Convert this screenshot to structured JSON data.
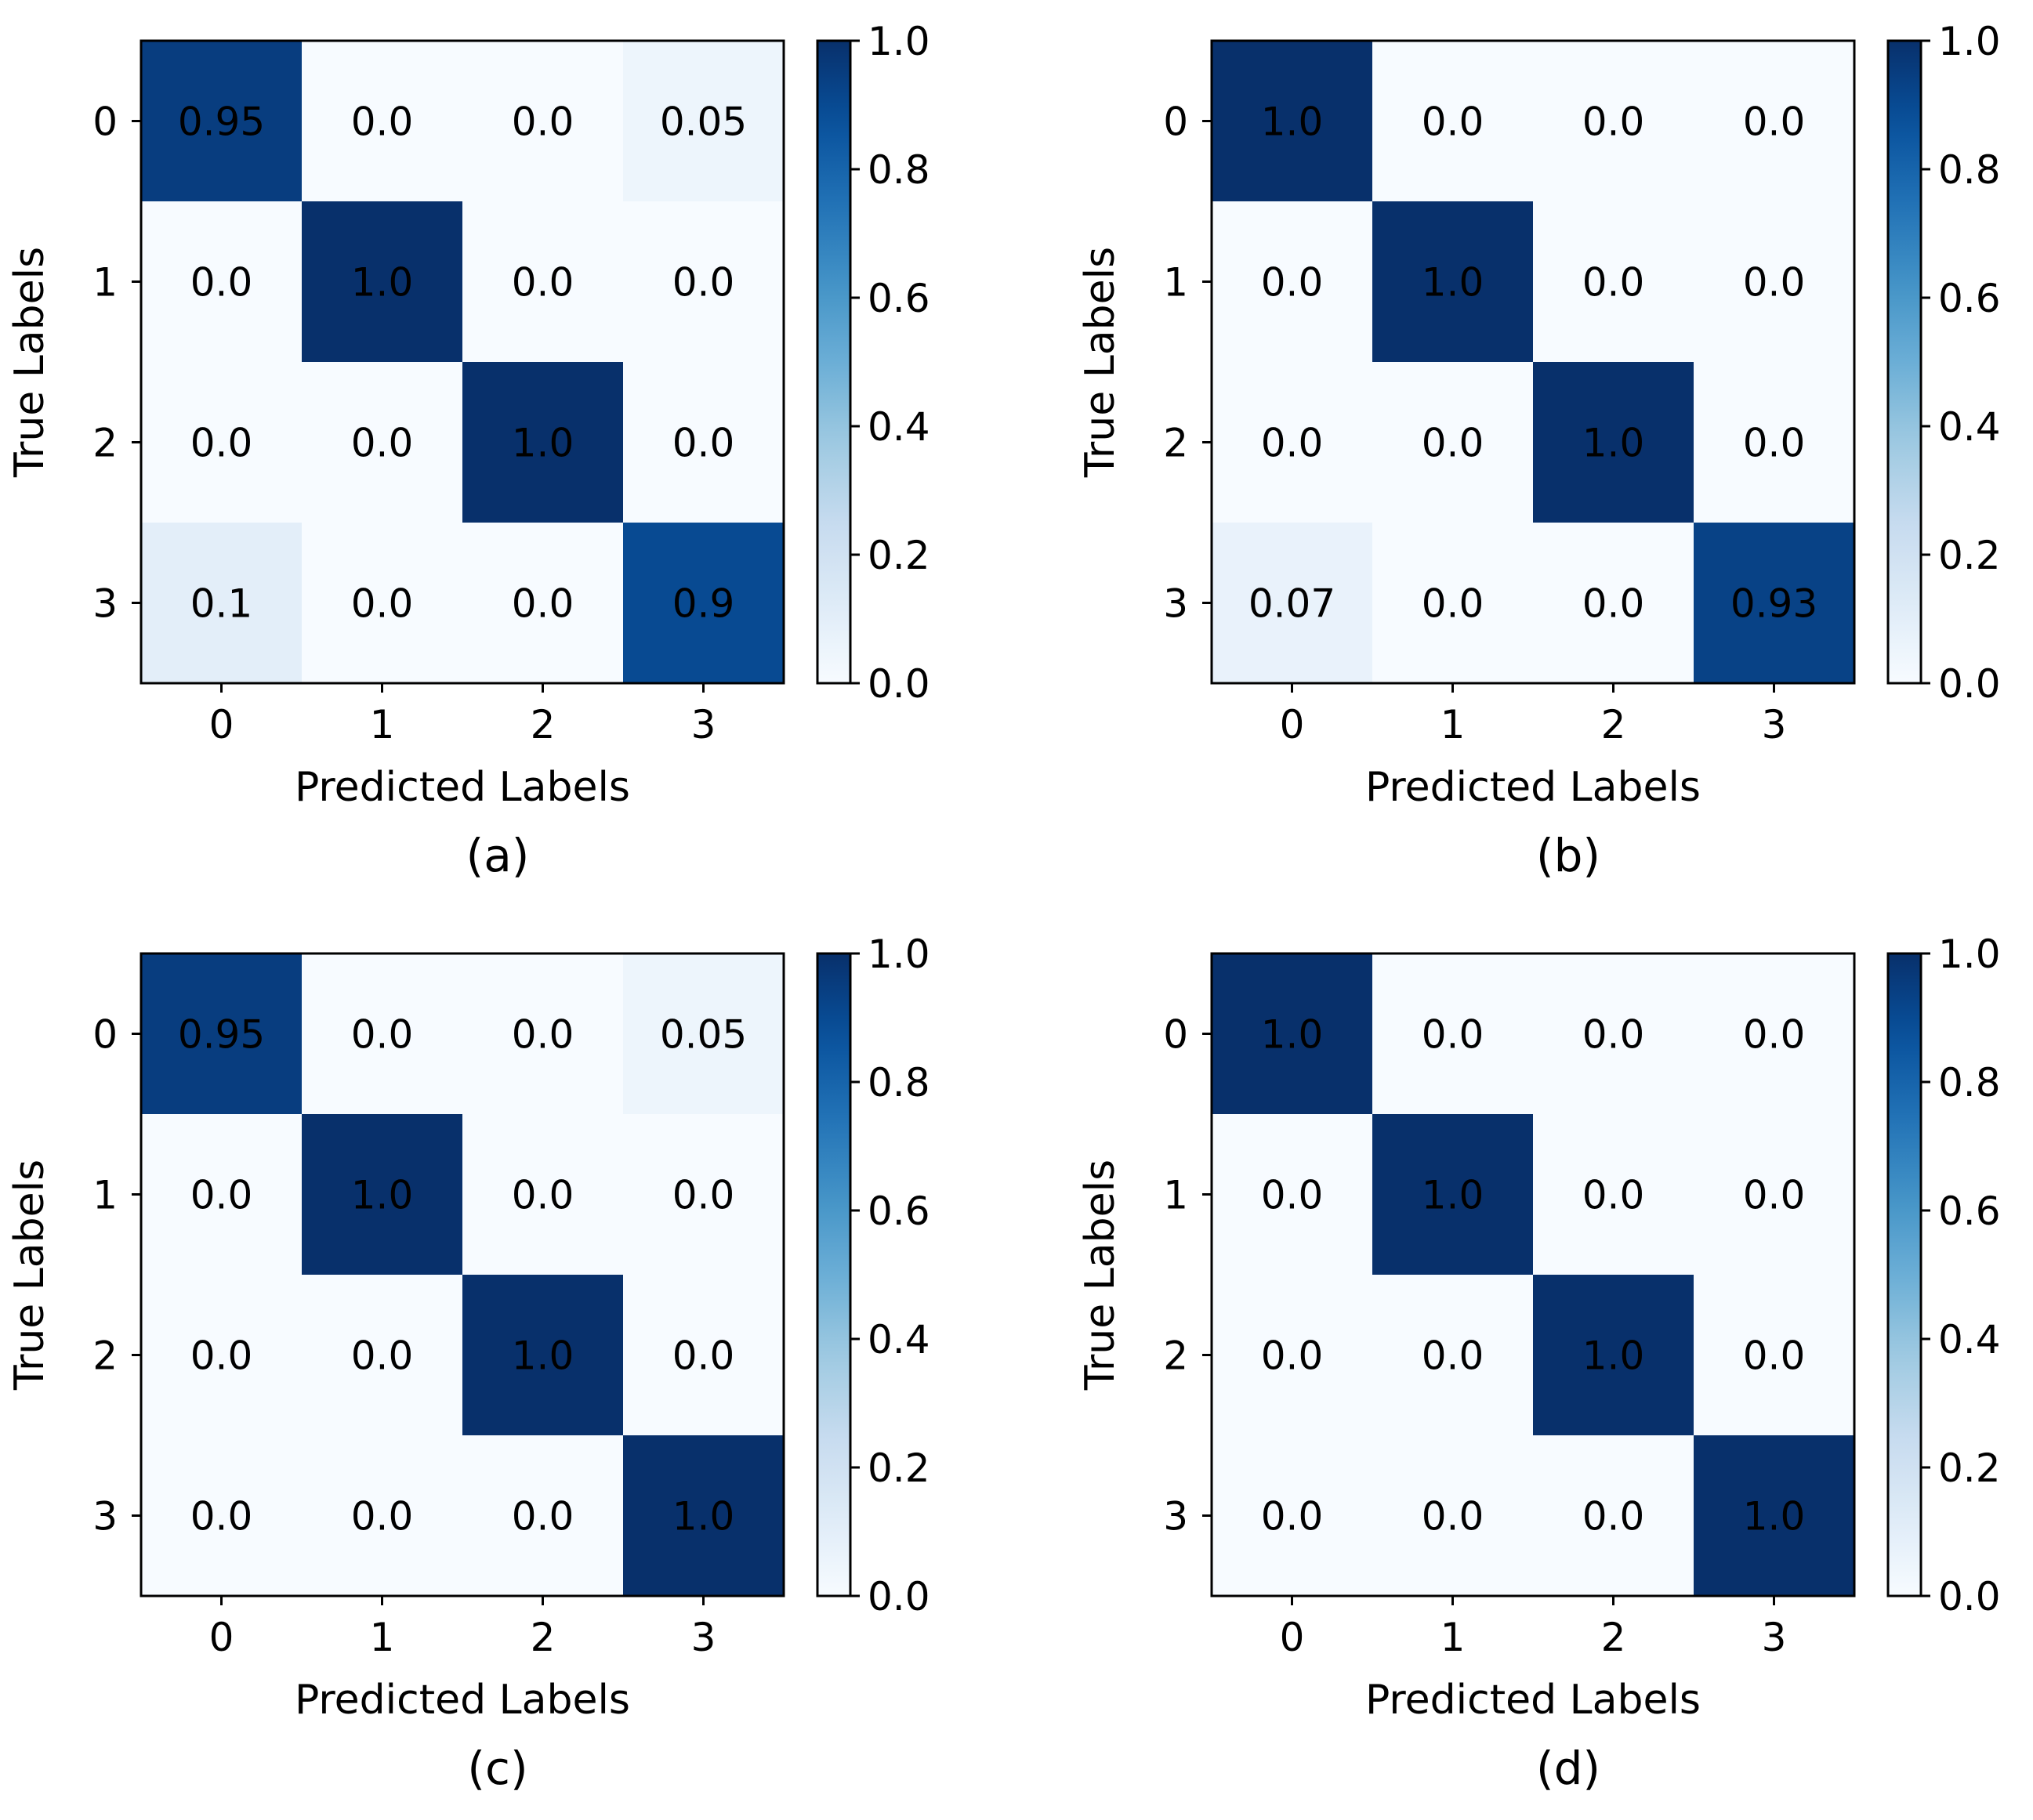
{
  "chart_data": [
    {
      "type": "heatmap",
      "panel_label": "(a)",
      "xlabel": "Predicted Labels",
      "ylabel": "True Labels",
      "x_ticks": [
        "0",
        "1",
        "2",
        "3"
      ],
      "y_ticks": [
        "0",
        "1",
        "2",
        "3"
      ],
      "matrix": [
        [
          0.95,
          0.0,
          0.0,
          0.05
        ],
        [
          0.0,
          1.0,
          0.0,
          0.0
        ],
        [
          0.0,
          0.0,
          1.0,
          0.0
        ],
        [
          0.1,
          0.0,
          0.0,
          0.9
        ]
      ],
      "cell_labels": [
        [
          "0.95",
          "0.0",
          "0.0",
          "0.05"
        ],
        [
          "0.0",
          "1.0",
          "0.0",
          "0.0"
        ],
        [
          "0.0",
          "0.0",
          "1.0",
          "0.0"
        ],
        [
          "0.1",
          "0.0",
          "0.0",
          "0.9"
        ]
      ],
      "colorbar": {
        "range": [
          0.0,
          1.0
        ],
        "ticks": [
          "0.0",
          "0.2",
          "0.4",
          "0.6",
          "0.8",
          "1.0"
        ],
        "colormap": "Blues"
      }
    },
    {
      "type": "heatmap",
      "panel_label": "(b)",
      "xlabel": "Predicted Labels",
      "ylabel": "True Labels",
      "x_ticks": [
        "0",
        "1",
        "2",
        "3"
      ],
      "y_ticks": [
        "0",
        "1",
        "2",
        "3"
      ],
      "matrix": [
        [
          1.0,
          0.0,
          0.0,
          0.0
        ],
        [
          0.0,
          1.0,
          0.0,
          0.0
        ],
        [
          0.0,
          0.0,
          1.0,
          0.0
        ],
        [
          0.07,
          0.0,
          0.0,
          0.93
        ]
      ],
      "cell_labels": [
        [
          "1.0",
          "0.0",
          "0.0",
          "0.0"
        ],
        [
          "0.0",
          "1.0",
          "0.0",
          "0.0"
        ],
        [
          "0.0",
          "0.0",
          "1.0",
          "0.0"
        ],
        [
          "0.07",
          "0.0",
          "0.0",
          "0.93"
        ]
      ],
      "colorbar": {
        "range": [
          0.0,
          1.0
        ],
        "ticks": [
          "0.0",
          "0.2",
          "0.4",
          "0.6",
          "0.8",
          "1.0"
        ],
        "colormap": "Blues"
      }
    },
    {
      "type": "heatmap",
      "panel_label": "(c)",
      "xlabel": "Predicted Labels",
      "ylabel": "True Labels",
      "x_ticks": [
        "0",
        "1",
        "2",
        "3"
      ],
      "y_ticks": [
        "0",
        "1",
        "2",
        "3"
      ],
      "matrix": [
        [
          0.95,
          0.0,
          0.0,
          0.05
        ],
        [
          0.0,
          1.0,
          0.0,
          0.0
        ],
        [
          0.0,
          0.0,
          1.0,
          0.0
        ],
        [
          0.0,
          0.0,
          0.0,
          1.0
        ]
      ],
      "cell_labels": [
        [
          "0.95",
          "0.0",
          "0.0",
          "0.05"
        ],
        [
          "0.0",
          "1.0",
          "0.0",
          "0.0"
        ],
        [
          "0.0",
          "0.0",
          "1.0",
          "0.0"
        ],
        [
          "0.0",
          "0.0",
          "0.0",
          "1.0"
        ]
      ],
      "colorbar": {
        "range": [
          0.0,
          1.0
        ],
        "ticks": [
          "0.0",
          "0.2",
          "0.4",
          "0.6",
          "0.8",
          "1.0"
        ],
        "colormap": "Blues"
      }
    },
    {
      "type": "heatmap",
      "panel_label": "(d)",
      "xlabel": "Predicted Labels",
      "ylabel": "True Labels",
      "x_ticks": [
        "0",
        "1",
        "2",
        "3"
      ],
      "y_ticks": [
        "0",
        "1",
        "2",
        "3"
      ],
      "matrix": [
        [
          1.0,
          0.0,
          0.0,
          0.0
        ],
        [
          0.0,
          1.0,
          0.0,
          0.0
        ],
        [
          0.0,
          0.0,
          1.0,
          0.0
        ],
        [
          0.0,
          0.0,
          0.0,
          1.0
        ]
      ],
      "cell_labels": [
        [
          "1.0",
          "0.0",
          "0.0",
          "0.0"
        ],
        [
          "0.0",
          "1.0",
          "0.0",
          "0.0"
        ],
        [
          "0.0",
          "0.0",
          "1.0",
          "0.0"
        ],
        [
          "0.0",
          "0.0",
          "0.0",
          "1.0"
        ]
      ],
      "colorbar": {
        "range": [
          0.0,
          1.0
        ],
        "ticks": [
          "0.0",
          "0.2",
          "0.4",
          "0.6",
          "0.8",
          "1.0"
        ],
        "colormap": "Blues"
      }
    }
  ]
}
